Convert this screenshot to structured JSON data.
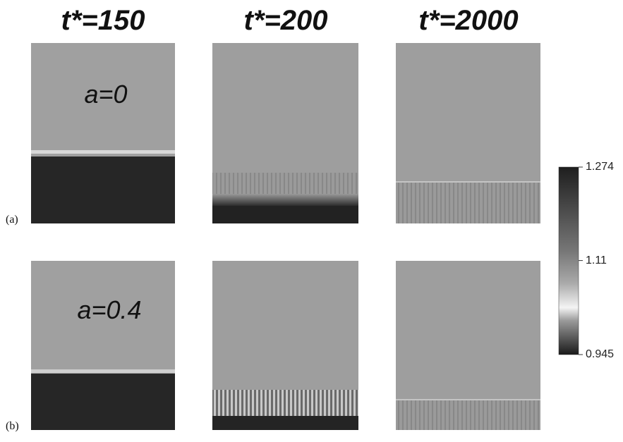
{
  "columns": [
    "t*=150",
    "t*=200",
    "t*=2000"
  ],
  "rows": [
    "(a)",
    "(b)"
  ],
  "annotations": [
    "a=0",
    "a=0.4"
  ],
  "colorbar": {
    "ticks": [
      1.274,
      1.11,
      0.945
    ]
  }
}
